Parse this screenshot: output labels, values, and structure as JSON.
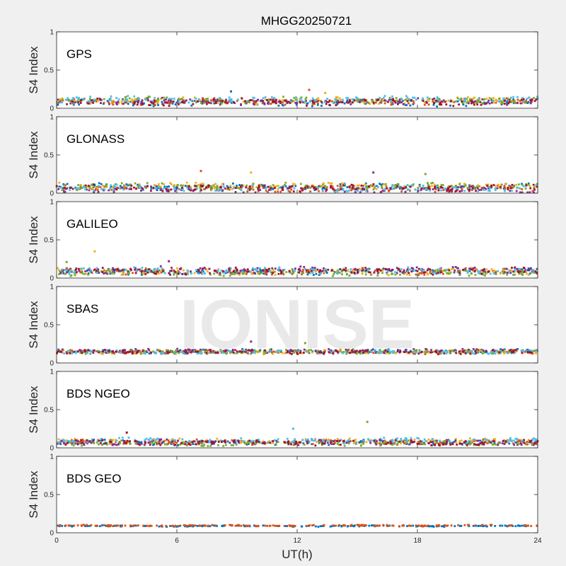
{
  "title": "MHGG20250721",
  "watermark": "IONISE",
  "colors": {
    "background": "#f0f0f0",
    "axes_face": "#ffffff",
    "axes_edge": "#262626",
    "watermark": "#e6e6e6",
    "series_palette": [
      "#0072bd",
      "#d95319",
      "#edb120",
      "#7e2f8e",
      "#77ac30",
      "#4dbeee",
      "#a2142f"
    ]
  },
  "chart_data": {
    "type": "scatter",
    "xlabel": "UT(h)",
    "ylabel": "S4 Index",
    "xlim": [
      0,
      24
    ],
    "ylim": [
      0,
      1
    ],
    "xticks": [
      0,
      6,
      12,
      18,
      24
    ],
    "yticks": [
      0,
      0.5,
      1
    ],
    "grid": false,
    "legend": "none",
    "panels": [
      {
        "label": "GPS",
        "baseline": 0.09,
        "spread": 0.05,
        "spikes": [
          [
            8.7,
            0.22
          ],
          [
            12.6,
            0.24
          ],
          [
            13.4,
            0.2
          ]
        ]
      },
      {
        "label": "GLONASS",
        "baseline": 0.07,
        "spread": 0.05,
        "spikes": [
          [
            7.2,
            0.29
          ],
          [
            9.7,
            0.27
          ],
          [
            15.8,
            0.27
          ],
          [
            18.4,
            0.25
          ]
        ]
      },
      {
        "label": "GALILEO",
        "baseline": 0.09,
        "spread": 0.05,
        "spikes": [
          [
            1.9,
            0.35
          ],
          [
            5.6,
            0.22
          ],
          [
            0.5,
            0.21
          ]
        ]
      },
      {
        "label": "SBAS",
        "baseline": 0.15,
        "spread": 0.03,
        "spikes": [
          [
            9.7,
            0.28
          ],
          [
            12.4,
            0.26
          ]
        ]
      },
      {
        "label": "BDS NGEO",
        "baseline": 0.08,
        "spread": 0.04,
        "spikes": [
          [
            15.5,
            0.34
          ],
          [
            11.8,
            0.25
          ],
          [
            3.5,
            0.2
          ]
        ]
      },
      {
        "label": "BDS GEO",
        "baseline": 0.09,
        "spread": 0.01,
        "spikes": []
      }
    ]
  }
}
